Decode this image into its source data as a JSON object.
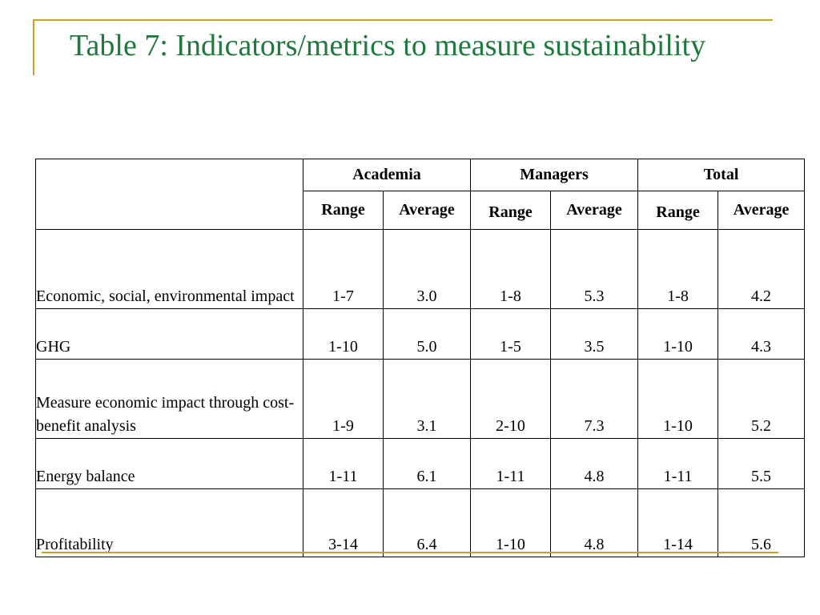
{
  "slide": {
    "title": "Table 7: Indicators/metrics to measure sustainability"
  },
  "table": {
    "groups": [
      {
        "label": "Academia"
      },
      {
        "label": "Managers"
      },
      {
        "label": "Total"
      }
    ],
    "subheaders": [
      "Range",
      "Average",
      "Range",
      "Average",
      "Range",
      "Average"
    ],
    "rows": [
      {
        "label": "Economic, social, environmental impact",
        "values": [
          "1-7",
          "3.0",
          "1-8",
          "5.3",
          "1-8",
          "4.2"
        ]
      },
      {
        "label": "GHG",
        "values": [
          "1-10",
          "5.0",
          "1-5",
          "3.5",
          "1-10",
          "4.3"
        ]
      },
      {
        "label": "Measure economic impact through cost-benefit analysis",
        "values": [
          "1-9",
          "3.1",
          "2-10",
          "7.3",
          "1-10",
          "5.2"
        ]
      },
      {
        "label": "Energy balance",
        "values": [
          "1-11",
          "6.1",
          "1-11",
          "4.8",
          "1-11",
          "5.5"
        ]
      },
      {
        "label": "Profitability",
        "values": [
          "3-14",
          "6.4",
          "1-10",
          "4.8",
          "1-14",
          "5.6"
        ]
      }
    ]
  },
  "colors": {
    "title": "#1e7a3c",
    "accent": "#c9a227",
    "text": "#000000",
    "border": "#000000"
  }
}
